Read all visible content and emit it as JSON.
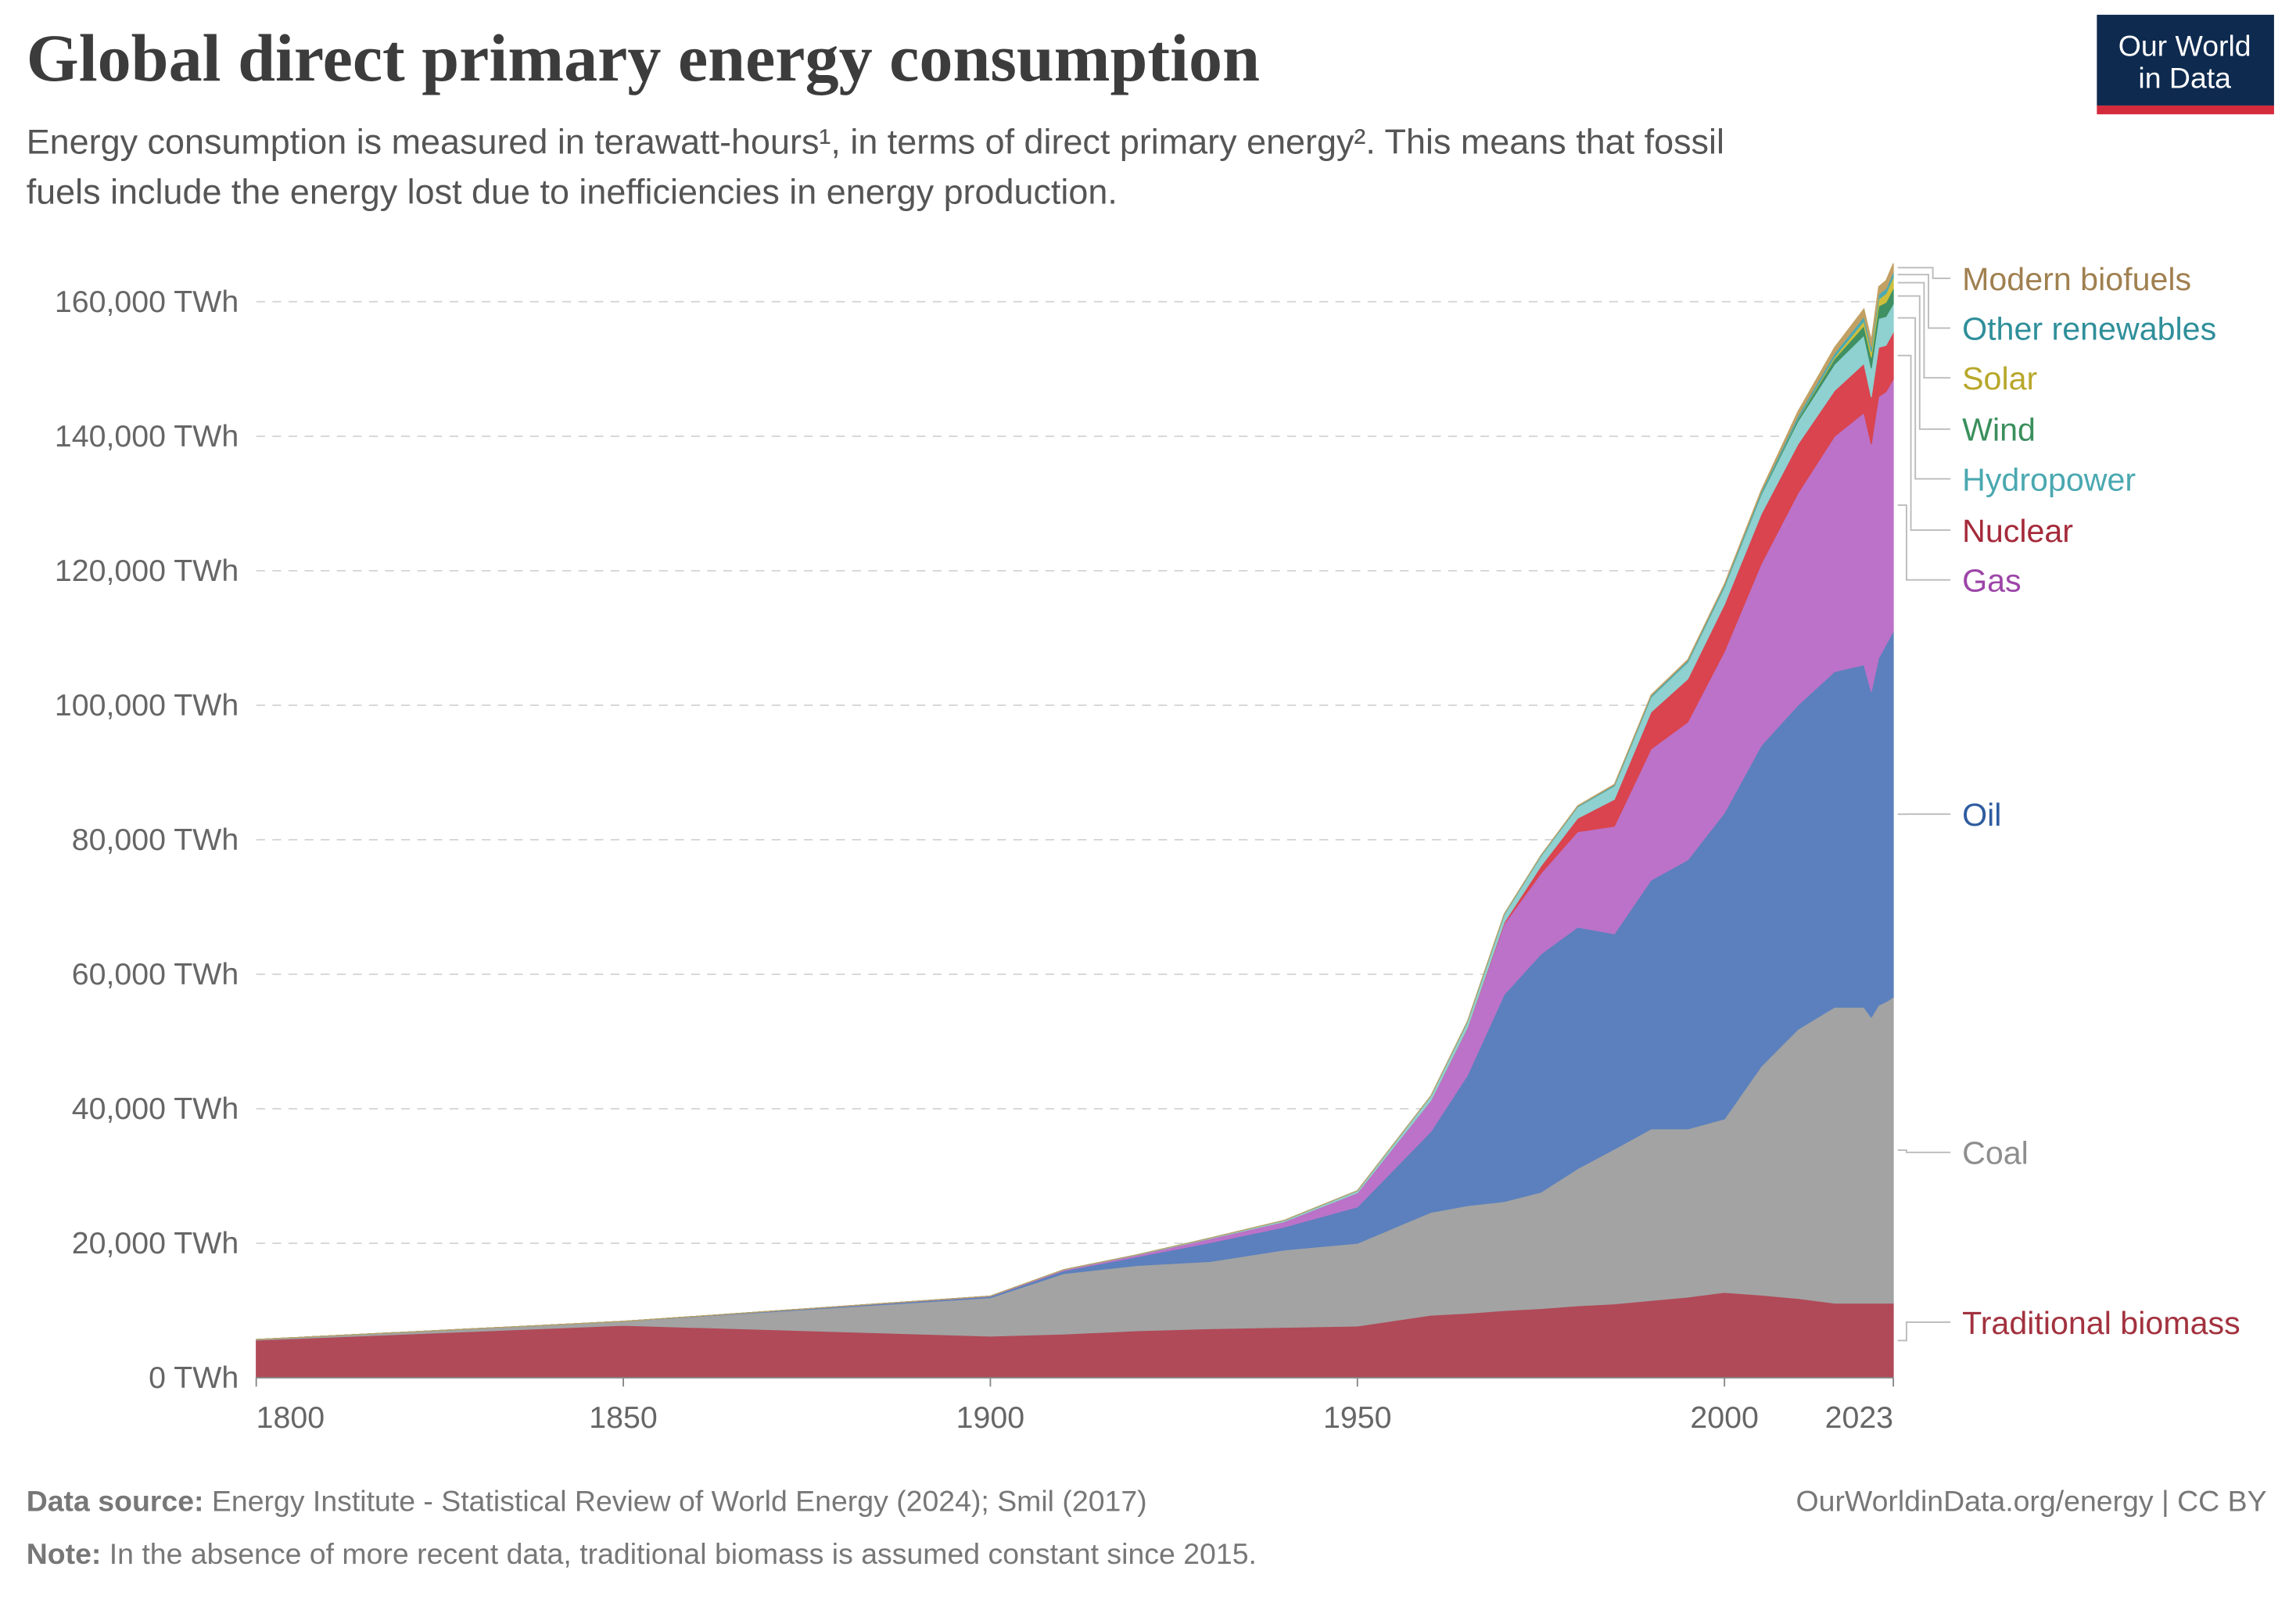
{
  "chart_data": {
    "type": "stacked_area",
    "title": "Global direct primary energy consumption",
    "subtitle_line1": "Energy consumption is measured in terawatt-hours¹, in terms of direct primary energy². This means that fossil",
    "subtitle_line2": "fuels include the energy lost due to inefficiencies in energy production.",
    "logo_line1": "Our World",
    "logo_line2": "in Data",
    "source_label": "Data source:",
    "source_text": "Energy Institute - Statistical Review of World Energy (2024); Smil (2017)",
    "credit": "OurWorldinData.org/energy | CC BY",
    "note_label": "Note:",
    "note_text": "In the absence of more recent data, traditional biomass is assumed constant since 2015.",
    "x": [
      1800,
      1850,
      1900,
      1910,
      1920,
      1930,
      1940,
      1950,
      1960,
      1965,
      1970,
      1975,
      1980,
      1985,
      1990,
      1995,
      2000,
      2005,
      2010,
      2015,
      2019,
      2020,
      2021,
      2022,
      2023
    ],
    "xlim": [
      1800,
      2023
    ],
    "xticks": [
      1800,
      1850,
      1900,
      1950,
      2000,
      2023
    ],
    "ylim": [
      0,
      160000
    ],
    "yticks": [
      {
        "value": 0,
        "label": "0 TWh"
      },
      {
        "value": 20000,
        "label": "20,000 TWh"
      },
      {
        "value": 40000,
        "label": "40,000 TWh"
      },
      {
        "value": 60000,
        "label": "60,000 TWh"
      },
      {
        "value": 80000,
        "label": "80,000 TWh"
      },
      {
        "value": 100000,
        "label": "100,000 TWh"
      },
      {
        "value": 120000,
        "label": "120,000 TWh"
      },
      {
        "value": 140000,
        "label": "140,000 TWh"
      },
      {
        "value": 160000,
        "label": "160,000 TWh"
      }
    ],
    "grid": true,
    "series": [
      {
        "name": "Traditional biomass",
        "color": "#b04a58",
        "label_color": "#a2323f",
        "values": [
          5600,
          7800,
          6200,
          6500,
          7000,
          7300,
          7500,
          7700,
          9300,
          9600,
          10000,
          10300,
          10700,
          11000,
          11500,
          12000,
          12700,
          12300,
          11800,
          11100,
          11100,
          11100,
          11100,
          11100,
          11100
        ]
      },
      {
        "name": "Coal",
        "color": "#a3a3a3",
        "label_color": "#8e8e8e",
        "values": [
          100,
          600,
          5700,
          9000,
          9700,
          10000,
          11500,
          12300,
          15300,
          16000,
          16200,
          17300,
          20400,
          23000,
          25500,
          25000,
          25800,
          34000,
          40000,
          44000,
          44000,
          42500,
          44300,
          44800,
          45500
        ]
      },
      {
        "name": "Oil",
        "color": "#5b80bd",
        "label_color": "#2f5ca0",
        "values": [
          0,
          0,
          200,
          400,
          1300,
          2800,
          3400,
          5400,
          12000,
          19400,
          30800,
          35400,
          35900,
          32000,
          37000,
          40000,
          45500,
          47700,
          48200,
          49900,
          50900,
          48400,
          51600,
          53100,
          54400
        ]
      },
      {
        "name": "Gas",
        "color": "#bb72c8",
        "label_color": "#9c45a8",
        "values": [
          0,
          0,
          60,
          150,
          250,
          600,
          800,
          2100,
          4600,
          7000,
          10500,
          12000,
          14200,
          16000,
          19500,
          20500,
          24000,
          27000,
          31500,
          35000,
          37500,
          36800,
          38900,
          37600,
          37500
        ]
      },
      {
        "name": "Nuclear",
        "color": "#d9444f",
        "label_color": "#a52a3a",
        "values": [
          0,
          0,
          0,
          0,
          0,
          0,
          0,
          0,
          20,
          70,
          230,
          1100,
          2000,
          4000,
          5500,
          6400,
          7000,
          7400,
          7300,
          6800,
          7300,
          7000,
          7300,
          6900,
          7000
        ]
      },
      {
        "name": "Hydropower",
        "color": "#8fd0d0",
        "label_color": "#4aa8b0",
        "values": [
          0,
          0,
          0,
          30,
          60,
          100,
          200,
          330,
          690,
          920,
          1200,
          1500,
          1700,
          2000,
          2200,
          2500,
          2600,
          2900,
          3400,
          3900,
          4200,
          4300,
          4300,
          4300,
          4200
        ]
      },
      {
        "name": "Wind",
        "color": "#3f9163",
        "label_color": "#3a8f5c",
        "values": [
          0,
          0,
          0,
          0,
          0,
          0,
          0,
          0,
          0,
          0,
          0,
          0,
          0,
          0,
          4,
          8,
          31,
          104,
          342,
          830,
          1420,
          1590,
          1850,
          2100,
          2300
        ]
      },
      {
        "name": "Solar",
        "color": "#cfbe3a",
        "label_color": "#b8a72a",
        "values": [
          0,
          0,
          0,
          0,
          0,
          0,
          0,
          0,
          0,
          0,
          0,
          0,
          0,
          0,
          0,
          0,
          0,
          0,
          34,
          260,
          700,
          850,
          1030,
          1300,
          1640
        ]
      },
      {
        "name": "Other renewables",
        "color": "#4daab2",
        "label_color": "#2f8f9a",
        "values": [
          0,
          0,
          0,
          0,
          0,
          0,
          0,
          0,
          0,
          50,
          60,
          80,
          110,
          170,
          240,
          270,
          300,
          350,
          450,
          570,
          680,
          700,
          720,
          750,
          770
        ]
      },
      {
        "name": "Modern biofuels",
        "color": "#c2a064",
        "label_color": "#a08050",
        "values": [
          0,
          0,
          0,
          0,
          0,
          0,
          0,
          0,
          0,
          0,
          0,
          0,
          50,
          80,
          100,
          120,
          130,
          220,
          650,
          860,
          1150,
          1060,
          1130,
          1200,
          1300
        ]
      }
    ]
  }
}
